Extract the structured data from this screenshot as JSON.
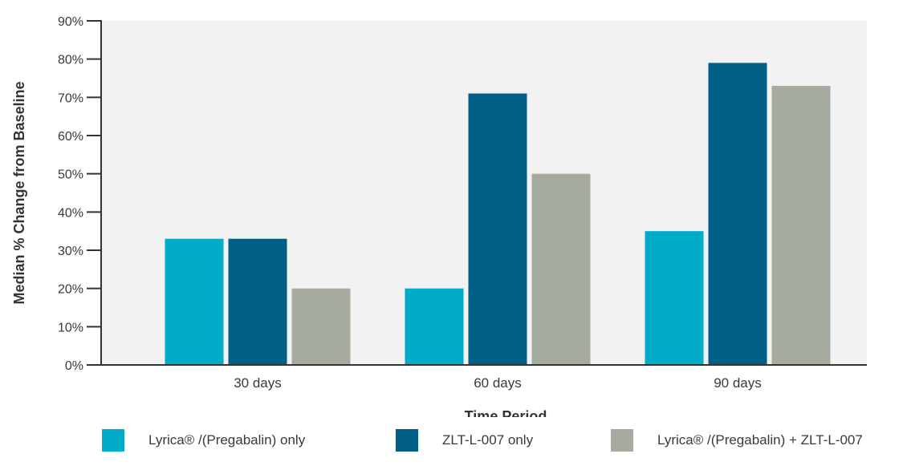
{
  "chart_data": {
    "type": "bar",
    "title": "",
    "xlabel": "Time Period",
    "ylabel": "Median % Change from Baseline",
    "categories": [
      "30 days",
      "60 days",
      "90 days"
    ],
    "ylim": [
      0,
      90
    ],
    "yticks": [
      "0%",
      "10%",
      "20%",
      "30%",
      "40%",
      "50%",
      "60%",
      "70%",
      "80%",
      "90%"
    ],
    "series": [
      {
        "name": "Lyrica® /(Pregabalin) only",
        "color": "#00acc8",
        "values": [
          33,
          20,
          35
        ]
      },
      {
        "name": "ZLT-L-007 only",
        "color": "#005f87",
        "values": [
          33,
          71,
          79
        ]
      },
      {
        "name": "Lyrica® /(Pregabalin) + ZLT-L-007",
        "color": "#a6aba0",
        "values": [
          20,
          50,
          73
        ]
      }
    ],
    "grid": false,
    "legend_position": "bottom",
    "plot_background": "#f2f2f2"
  }
}
